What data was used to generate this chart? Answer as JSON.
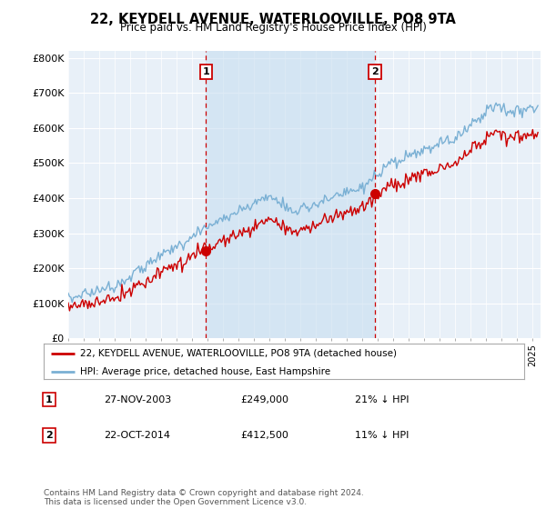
{
  "title": "22, KEYDELL AVENUE, WATERLOOVILLE, PO8 9TA",
  "subtitle": "Price paid vs. HM Land Registry's House Price Index (HPI)",
  "ylabel_ticks": [
    "£0",
    "£100K",
    "£200K",
    "£300K",
    "£400K",
    "£500K",
    "£600K",
    "£700K",
    "£800K"
  ],
  "ytick_values": [
    0,
    100000,
    200000,
    300000,
    400000,
    500000,
    600000,
    700000,
    800000
  ],
  "ylim": [
    0,
    820000
  ],
  "xlim_start": 1995.0,
  "xlim_end": 2025.5,
  "hpi_color": "#7ab0d4",
  "price_color": "#cc0000",
  "shade_color": "#ddeeff",
  "marker1_x": 2003.9,
  "marker1_y": 249000,
  "marker2_x": 2014.8,
  "marker2_y": 412500,
  "legend_entries": [
    "22, KEYDELL AVENUE, WATERLOOVILLE, PO8 9TA (detached house)",
    "HPI: Average price, detached house, East Hampshire"
  ],
  "table_rows": [
    [
      "1",
      "27-NOV-2003",
      "£249,000",
      "21% ↓ HPI"
    ],
    [
      "2",
      "22-OCT-2014",
      "£412,500",
      "11% ↓ HPI"
    ]
  ],
  "footer": "Contains HM Land Registry data © Crown copyright and database right 2024.\nThis data is licensed under the Open Government Licence v3.0.",
  "background_color": "#ffffff",
  "plot_bg_color": "#e8f0f8"
}
